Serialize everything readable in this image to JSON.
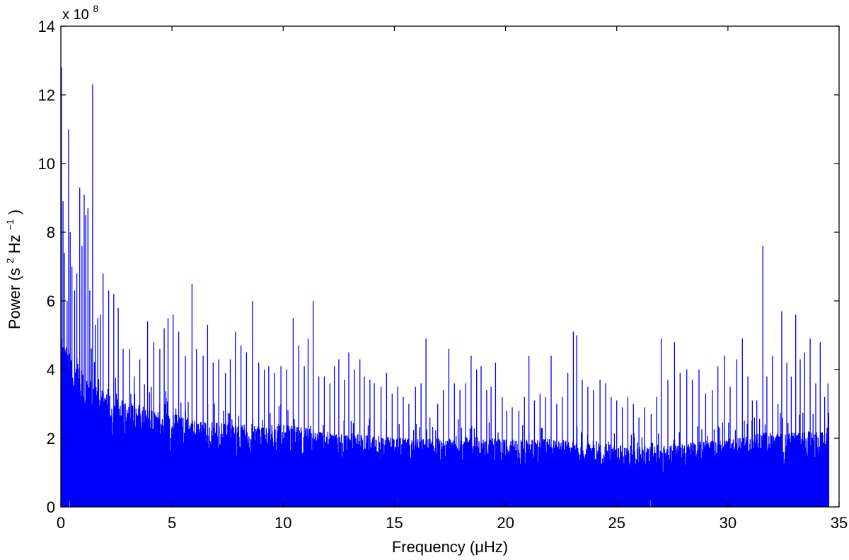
{
  "chart_data": {
    "type": "line",
    "xlabel": "Frequency (μHz)",
    "ylabel": {
      "prefix": "Power (s",
      "sup1": "2",
      "mid": "Hz",
      "sup2": "−1",
      "suffix": ")"
    },
    "y_multiplier": {
      "base": "x 10",
      "exponent": "8"
    },
    "xlim": [
      0,
      35
    ],
    "ylim": [
      0,
      14
    ],
    "x_ticks": [
      "0",
      "5",
      "10",
      "15",
      "20",
      "25",
      "30",
      "35"
    ],
    "y_ticks": [
      "0",
      "2",
      "4",
      "6",
      "8",
      "10",
      "12",
      "14"
    ],
    "line_color": "#0000ff",
    "grid": false,
    "series": [
      {
        "data_end_x": 34.55,
        "baseline": [
          [
            0,
            4.5
          ],
          [
            0.5,
            4.0
          ],
          [
            1,
            3.6
          ],
          [
            1.5,
            3.3
          ],
          [
            2,
            3.0
          ],
          [
            3,
            2.8
          ],
          [
            4,
            2.6
          ],
          [
            5,
            2.5
          ],
          [
            6,
            2.3
          ],
          [
            8,
            2.2
          ],
          [
            10,
            2.2
          ],
          [
            12,
            2.0
          ],
          [
            14,
            1.9
          ],
          [
            16,
            1.8
          ],
          [
            18,
            1.9
          ],
          [
            20,
            1.8
          ],
          [
            22,
            1.8
          ],
          [
            24,
            1.7
          ],
          [
            26,
            1.6
          ],
          [
            28,
            1.7
          ],
          [
            30,
            1.8
          ],
          [
            32,
            2.0
          ],
          [
            34,
            2.0
          ],
          [
            34.55,
            2.0
          ]
        ],
        "peaks": [
          [
            0.03,
            12.8
          ],
          [
            0.1,
            8.9
          ],
          [
            0.16,
            7.4
          ],
          [
            0.28,
            6.0
          ],
          [
            0.35,
            11.0
          ],
          [
            0.42,
            8.0
          ],
          [
            0.5,
            7.0
          ],
          [
            0.62,
            6.3
          ],
          [
            0.72,
            6.8
          ],
          [
            0.85,
            9.3
          ],
          [
            0.95,
            7.6
          ],
          [
            1.05,
            9.1
          ],
          [
            1.12,
            8.5
          ],
          [
            1.22,
            8.7
          ],
          [
            1.3,
            6.3
          ],
          [
            1.43,
            12.3
          ],
          [
            1.55,
            5.3
          ],
          [
            1.66,
            5.5
          ],
          [
            1.78,
            5.6
          ],
          [
            1.9,
            6.8
          ],
          [
            2.15,
            6.3
          ],
          [
            2.38,
            6.2
          ],
          [
            2.58,
            5.8
          ],
          [
            2.8,
            4.6
          ],
          [
            3.1,
            4.6
          ],
          [
            3.3,
            3.8
          ],
          [
            3.55,
            4.3
          ],
          [
            3.9,
            5.4
          ],
          [
            4.18,
            4.8
          ],
          [
            4.45,
            4.6
          ],
          [
            4.65,
            5.2
          ],
          [
            4.82,
            5.5
          ],
          [
            5.05,
            5.6
          ],
          [
            5.3,
            5.1
          ],
          [
            5.6,
            4.4
          ],
          [
            5.9,
            6.5
          ],
          [
            6.1,
            4.6
          ],
          [
            6.4,
            4.4
          ],
          [
            6.6,
            5.3
          ],
          [
            6.85,
            4.2
          ],
          [
            7.1,
            4.3
          ],
          [
            7.4,
            3.9
          ],
          [
            7.62,
            4.3
          ],
          [
            7.85,
            5.1
          ],
          [
            8.1,
            4.7
          ],
          [
            8.35,
            4.5
          ],
          [
            8.62,
            6.0
          ],
          [
            8.9,
            4.2
          ],
          [
            9.15,
            4.0
          ],
          [
            9.35,
            4.1
          ],
          [
            9.6,
            3.9
          ],
          [
            9.9,
            4.1
          ],
          [
            10.15,
            4.0
          ],
          [
            10.45,
            5.5
          ],
          [
            10.7,
            4.7
          ],
          [
            10.95,
            4.1
          ],
          [
            11.12,
            4.9
          ],
          [
            11.35,
            6.0
          ],
          [
            11.6,
            3.8
          ],
          [
            11.85,
            3.8
          ],
          [
            12.1,
            3.6
          ],
          [
            12.3,
            4.1
          ],
          [
            12.5,
            4.3
          ],
          [
            12.75,
            3.7
          ],
          [
            12.95,
            4.5
          ],
          [
            13.2,
            4.0
          ],
          [
            13.45,
            4.3
          ],
          [
            13.65,
            3.8
          ],
          [
            13.9,
            3.7
          ],
          [
            14.1,
            3.6
          ],
          [
            14.4,
            3.5
          ],
          [
            14.65,
            3.9
          ],
          [
            14.9,
            3.3
          ],
          [
            15.15,
            3.5
          ],
          [
            15.4,
            3.2
          ],
          [
            15.65,
            3.0
          ],
          [
            15.95,
            3.5
          ],
          [
            16.2,
            3.6
          ],
          [
            16.42,
            4.9
          ],
          [
            16.6,
            2.6
          ],
          [
            16.95,
            3.0
          ],
          [
            17.2,
            3.4
          ],
          [
            17.45,
            4.6
          ],
          [
            17.7,
            3.6
          ],
          [
            17.95,
            3.4
          ],
          [
            18.2,
            3.6
          ],
          [
            18.45,
            4.4
          ],
          [
            18.7,
            4.0
          ],
          [
            18.9,
            4.1
          ],
          [
            19.15,
            3.4
          ],
          [
            19.35,
            3.5
          ],
          [
            19.55,
            4.2
          ],
          [
            19.85,
            3.2
          ],
          [
            20.05,
            2.8
          ],
          [
            20.3,
            2.9
          ],
          [
            20.6,
            2.8
          ],
          [
            20.85,
            3.2
          ],
          [
            21.05,
            4.4
          ],
          [
            21.3,
            3.1
          ],
          [
            21.55,
            3.3
          ],
          [
            21.8,
            3.2
          ],
          [
            22.05,
            4.4
          ],
          [
            22.3,
            3.0
          ],
          [
            22.55,
            3.2
          ],
          [
            22.8,
            3.9
          ],
          [
            23.05,
            5.1
          ],
          [
            23.2,
            5.0
          ],
          [
            23.45,
            3.7
          ],
          [
            23.7,
            3.5
          ],
          [
            23.95,
            3.4
          ],
          [
            24.25,
            3.7
          ],
          [
            24.5,
            3.6
          ],
          [
            24.75,
            3.2
          ],
          [
            25.0,
            3.1
          ],
          [
            25.25,
            2.9
          ],
          [
            25.5,
            3.2
          ],
          [
            25.75,
            3.0
          ],
          [
            26.0,
            2.6
          ],
          [
            26.25,
            2.9
          ],
          [
            26.55,
            2.7
          ],
          [
            26.8,
            3.2
          ],
          [
            27.0,
            4.9
          ],
          [
            27.3,
            3.7
          ],
          [
            27.6,
            4.8
          ],
          [
            27.85,
            3.9
          ],
          [
            28.15,
            4.0
          ],
          [
            28.4,
            3.7
          ],
          [
            28.7,
            4.0
          ],
          [
            29.0,
            3.3
          ],
          [
            29.3,
            3.4
          ],
          [
            29.55,
            4.1
          ],
          [
            29.85,
            4.4
          ],
          [
            30.1,
            3.5
          ],
          [
            30.4,
            4.3
          ],
          [
            30.65,
            4.9
          ],
          [
            30.9,
            3.8
          ],
          [
            31.1,
            3.1
          ],
          [
            31.3,
            3.1
          ],
          [
            31.57,
            7.6
          ],
          [
            31.75,
            3.8
          ],
          [
            32.0,
            4.4
          ],
          [
            32.25,
            3.0
          ],
          [
            32.42,
            5.7
          ],
          [
            32.65,
            4.2
          ],
          [
            32.85,
            3.8
          ],
          [
            33.05,
            5.6
          ],
          [
            33.25,
            4.3
          ],
          [
            33.45,
            4.5
          ],
          [
            33.7,
            4.9
          ],
          [
            33.95,
            3.6
          ],
          [
            34.15,
            4.8
          ],
          [
            34.35,
            3.2
          ],
          [
            34.5,
            3.6
          ]
        ]
      }
    ]
  }
}
